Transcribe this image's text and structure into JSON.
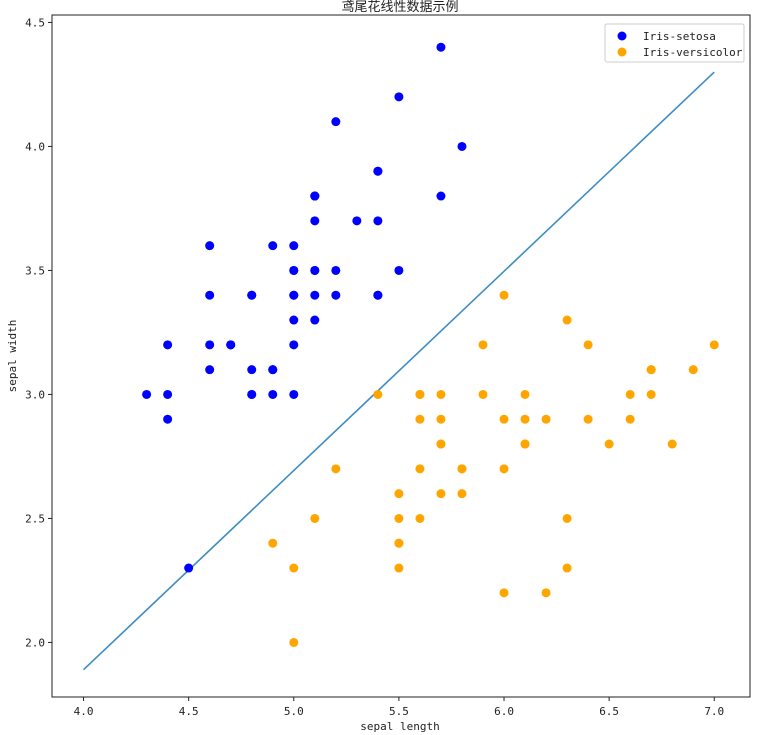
{
  "chart_data": {
    "type": "scatter",
    "title": "鸢尾花线性数据示例",
    "xlabel": "sepal length",
    "ylabel": "sepal width",
    "xlim": [
      3.85,
      7.17
    ],
    "ylim": [
      1.78,
      4.53
    ],
    "x_ticks": [
      "4.0",
      "4.5",
      "5.0",
      "5.5",
      "6.0",
      "6.5",
      "7.0"
    ],
    "y_ticks": [
      "2.0",
      "2.5",
      "3.0",
      "3.5",
      "4.0",
      "4.5"
    ],
    "grid": false,
    "legend_position": "top-right",
    "series": [
      {
        "name": "Iris-setosa",
        "color": "#0000ff",
        "points": [
          [
            5.1,
            3.5
          ],
          [
            4.9,
            3.0
          ],
          [
            4.7,
            3.2
          ],
          [
            4.6,
            3.1
          ],
          [
            5.0,
            3.6
          ],
          [
            5.4,
            3.9
          ],
          [
            4.6,
            3.4
          ],
          [
            5.0,
            3.4
          ],
          [
            4.4,
            2.9
          ],
          [
            4.9,
            3.1
          ],
          [
            5.4,
            3.7
          ],
          [
            4.8,
            3.4
          ],
          [
            4.8,
            3.0
          ],
          [
            4.3,
            3.0
          ],
          [
            5.8,
            4.0
          ],
          [
            5.7,
            4.4
          ],
          [
            5.4,
            3.9
          ],
          [
            5.1,
            3.5
          ],
          [
            5.7,
            3.8
          ],
          [
            5.1,
            3.8
          ],
          [
            5.4,
            3.4
          ],
          [
            5.1,
            3.7
          ],
          [
            4.6,
            3.6
          ],
          [
            5.1,
            3.3
          ],
          [
            4.8,
            3.4
          ],
          [
            5.0,
            3.0
          ],
          [
            5.0,
            3.4
          ],
          [
            5.2,
            3.5
          ],
          [
            5.2,
            3.4
          ],
          [
            4.7,
            3.2
          ],
          [
            4.8,
            3.1
          ],
          [
            5.4,
            3.4
          ],
          [
            5.2,
            4.1
          ],
          [
            5.5,
            4.2
          ],
          [
            4.9,
            3.1
          ],
          [
            5.0,
            3.2
          ],
          [
            5.5,
            3.5
          ],
          [
            4.9,
            3.6
          ],
          [
            4.4,
            3.0
          ],
          [
            5.1,
            3.4
          ],
          [
            5.0,
            3.5
          ],
          [
            4.5,
            2.3
          ],
          [
            4.4,
            3.2
          ],
          [
            5.0,
            3.5
          ],
          [
            5.1,
            3.8
          ],
          [
            4.8,
            3.0
          ],
          [
            5.1,
            3.8
          ],
          [
            4.6,
            3.2
          ],
          [
            5.3,
            3.7
          ],
          [
            5.0,
            3.3
          ]
        ]
      },
      {
        "name": "Iris-versicolor",
        "color": "#ffa500",
        "points": [
          [
            7.0,
            3.2
          ],
          [
            6.4,
            3.2
          ],
          [
            6.9,
            3.1
          ],
          [
            5.5,
            2.3
          ],
          [
            6.5,
            2.8
          ],
          [
            5.7,
            2.8
          ],
          [
            6.3,
            3.3
          ],
          [
            4.9,
            2.4
          ],
          [
            6.6,
            2.9
          ],
          [
            5.2,
            2.7
          ],
          [
            5.0,
            2.0
          ],
          [
            5.9,
            3.0
          ],
          [
            6.0,
            2.2
          ],
          [
            6.1,
            2.9
          ],
          [
            5.6,
            2.9
          ],
          [
            6.7,
            3.1
          ],
          [
            5.6,
            3.0
          ],
          [
            5.8,
            2.7
          ],
          [
            6.2,
            2.2
          ],
          [
            5.6,
            2.5
          ],
          [
            5.9,
            3.2
          ],
          [
            6.1,
            2.8
          ],
          [
            6.3,
            2.5
          ],
          [
            6.1,
            2.8
          ],
          [
            6.4,
            2.9
          ],
          [
            6.6,
            3.0
          ],
          [
            6.8,
            2.8
          ],
          [
            6.7,
            3.0
          ],
          [
            6.0,
            2.9
          ],
          [
            5.7,
            2.6
          ],
          [
            5.5,
            2.4
          ],
          [
            5.5,
            2.4
          ],
          [
            5.8,
            2.7
          ],
          [
            6.0,
            2.7
          ],
          [
            5.4,
            3.0
          ],
          [
            6.0,
            3.4
          ],
          [
            6.7,
            3.1
          ],
          [
            6.3,
            2.3
          ],
          [
            5.6,
            3.0
          ],
          [
            5.5,
            2.5
          ],
          [
            5.5,
            2.6
          ],
          [
            6.1,
            3.0
          ],
          [
            5.8,
            2.6
          ],
          [
            5.0,
            2.3
          ],
          [
            5.6,
            2.7
          ],
          [
            5.7,
            3.0
          ],
          [
            5.7,
            2.9
          ],
          [
            6.2,
            2.9
          ],
          [
            5.1,
            2.5
          ],
          [
            5.7,
            2.8
          ]
        ]
      }
    ],
    "decision_line": {
      "color": "#3d8cc4",
      "points": [
        [
          4.0,
          1.89
        ],
        [
          7.0,
          4.3
        ]
      ]
    }
  }
}
